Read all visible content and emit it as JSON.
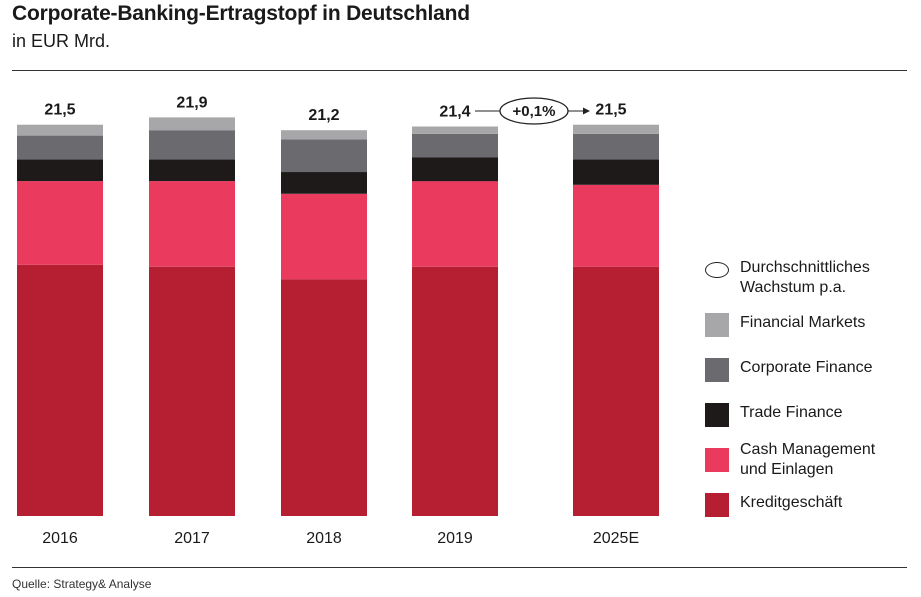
{
  "title": "Corporate-Banking-Ertragstopf in Deutschland",
  "subtitle": "in EUR Mrd.",
  "source": "Quelle: Strategy& Analyse",
  "colors": {
    "kreditgeschaeft": "#b51f31",
    "cash_management": "#ea3a5e",
    "trade_finance": "#1e1a1a",
    "corporate_finance": "#6b6b6f",
    "financial_markets": "#a7a7aa"
  },
  "legend": {
    "items": [
      {
        "label": "Durchschnittliches\nWachstum p.a.",
        "swatch": "ellipse-outline"
      },
      {
        "label": "Financial Markets",
        "color": "#a7a7aa"
      },
      {
        "label": "Corporate Finance",
        "color": "#6b6b6f"
      },
      {
        "label": "Trade Finance",
        "color": "#1e1a1a"
      },
      {
        "label": "Cash Management\nund Einlagen",
        "color": "#ea3a5e"
      },
      {
        "label": "Kreditgeschäft",
        "color": "#b51f31"
      }
    ]
  },
  "chart_data": {
    "type": "bar",
    "stacked": true,
    "categories": [
      "2016",
      "2017",
      "2018",
      "2019",
      "2025E"
    ],
    "totals": [
      "21,5",
      "21,9",
      "21,2",
      "21,4",
      "21,5"
    ],
    "total_values": [
      21.5,
      21.9,
      21.2,
      21.4,
      21.5
    ],
    "series": [
      {
        "name": "Kreditgeschäft",
        "color": "#b51f31",
        "values": [
          13.8,
          13.7,
          13.0,
          13.7,
          13.7
        ]
      },
      {
        "name": "Cash Management und Einlagen",
        "color": "#ea3a5e",
        "values": [
          4.6,
          4.7,
          4.7,
          4.7,
          4.5
        ]
      },
      {
        "name": "Trade Finance",
        "color": "#1e1a1a",
        "values": [
          1.2,
          1.2,
          1.2,
          1.3,
          1.4
        ]
      },
      {
        "name": "Corporate Finance",
        "color": "#6b6b6f",
        "values": [
          1.3,
          1.6,
          1.8,
          1.3,
          1.4
        ]
      },
      {
        "name": "Financial Markets",
        "color": "#a7a7aa",
        "values": [
          0.6,
          0.7,
          0.5,
          0.4,
          0.5
        ]
      }
    ],
    "growth_annotation": {
      "label": "+0,1%",
      "from": "2019",
      "to": "2025E"
    },
    "legend_position": "right",
    "grid": false
  }
}
